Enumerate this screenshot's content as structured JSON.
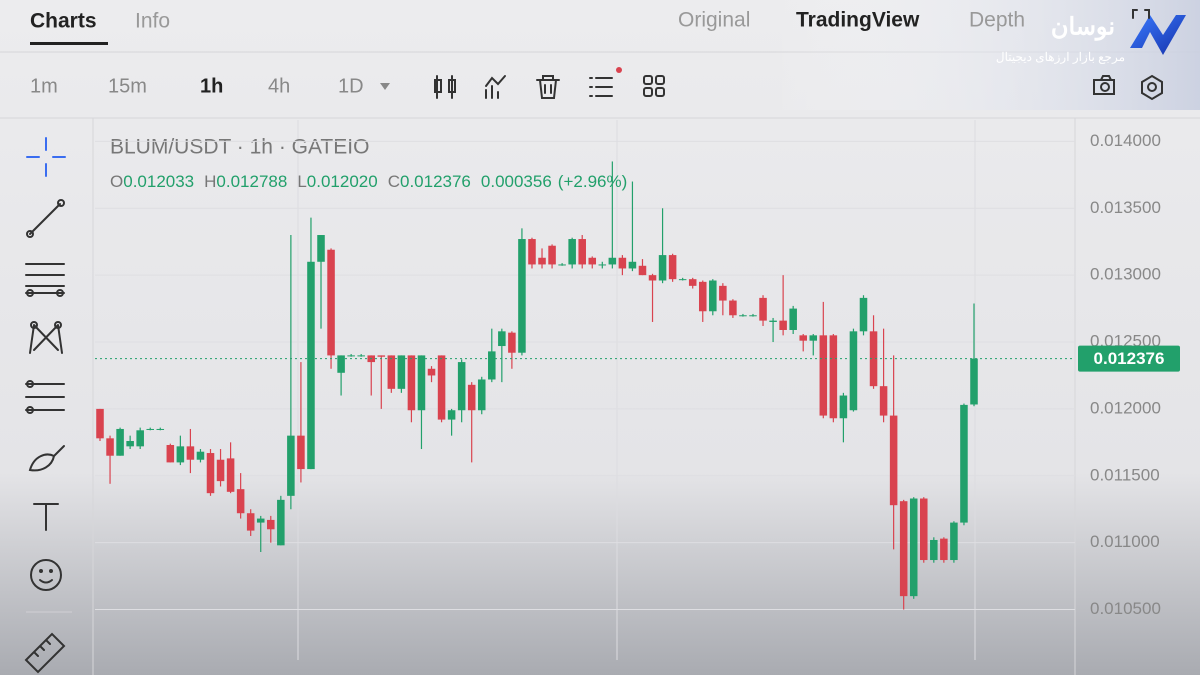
{
  "header": {
    "tabs": [
      "Charts",
      "Info"
    ],
    "views": [
      "Original",
      "TradingView",
      "Depth"
    ]
  },
  "logo": {
    "name": "نوسان",
    "tagline": "مرجع بازار ارزهای دیجیتال"
  },
  "toolbar": {
    "intervals": [
      "1m",
      "15m",
      "1h",
      "4h",
      "1D"
    ]
  },
  "chart_data": {
    "type": "candlestick",
    "title": "BLUM/USDT · 1h · GATEIO",
    "legend": [
      {
        "key": "O",
        "value": "0.012033"
      },
      {
        "key": "H",
        "value": "0.012788"
      },
      {
        "key": "L",
        "value": "0.012020"
      },
      {
        "key": "C",
        "value": "0.012376"
      }
    ],
    "change": "0.000356",
    "change_percent": "(+2.96%)",
    "up_color": "#22a06b",
    "down_color": "#d9434f",
    "ylim": [
      0.01016,
      0.01416
    ],
    "yticks": [
      {
        "value": 0.0105,
        "label": "0.010500"
      },
      {
        "value": 0.011,
        "label": "0.011000"
      },
      {
        "value": 0.0115,
        "label": "0.011500"
      },
      {
        "value": 0.012,
        "label": "0.012000"
      },
      {
        "value": 0.0125,
        "label": "0.012500"
      },
      {
        "value": 0.013,
        "label": "0.013000"
      },
      {
        "value": 0.0135,
        "label": "0.013500"
      },
      {
        "value": 0.014,
        "label": "0.014000"
      }
    ],
    "last_price": 0.012376,
    "ohlc": [
      [
        0.012,
        0.012,
        0.01176,
        0.01178
      ],
      [
        0.01178,
        0.0118,
        0.01144,
        0.01165
      ],
      [
        0.01165,
        0.01186,
        0.01165,
        0.01185
      ],
      [
        0.01172,
        0.0118,
        0.0117,
        0.01176
      ],
      [
        0.01172,
        0.01186,
        0.0117,
        0.01184
      ],
      [
        0.01185,
        0.01186,
        0.01184,
        0.01185
      ],
      [
        0.01185,
        0.01186,
        0.01184,
        0.01185
      ],
      [
        0.01173,
        0.01174,
        0.0116,
        0.0116
      ],
      [
        0.0116,
        0.0118,
        0.01158,
        0.01172
      ],
      [
        0.01172,
        0.01185,
        0.01152,
        0.01162
      ],
      [
        0.01162,
        0.0117,
        0.0116,
        0.01168
      ],
      [
        0.01167,
        0.0117,
        0.01135,
        0.01137
      ],
      [
        0.01162,
        0.0117,
        0.01142,
        0.01146
      ],
      [
        0.01163,
        0.01175,
        0.01137,
        0.01138
      ],
      [
        0.0114,
        0.01152,
        0.01118,
        0.01122
      ],
      [
        0.01122,
        0.01125,
        0.01105,
        0.01109
      ],
      [
        0.01115,
        0.0112,
        0.01093,
        0.01118
      ],
      [
        0.01117,
        0.0112,
        0.011,
        0.0111
      ],
      [
        0.01098,
        0.01135,
        0.01098,
        0.01132
      ],
      [
        0.01135,
        0.0133,
        0.01125,
        0.0118
      ],
      [
        0.0118,
        0.01235,
        0.01145,
        0.01155
      ],
      [
        0.01155,
        0.01343,
        0.01155,
        0.0131
      ],
      [
        0.0131,
        0.0133,
        0.0126,
        0.0133
      ],
      [
        0.01319,
        0.0132,
        0.0123,
        0.0124
      ],
      [
        0.01227,
        0.0124,
        0.0121,
        0.0124
      ],
      [
        0.0124,
        0.01241,
        0.01239,
        0.0124
      ],
      [
        0.0124,
        0.01241,
        0.01239,
        0.0124
      ],
      [
        0.0124,
        0.0124,
        0.0121,
        0.01235
      ],
      [
        0.0124,
        0.0124,
        0.012,
        0.01239
      ],
      [
        0.0124,
        0.0124,
        0.01212,
        0.01215
      ],
      [
        0.01215,
        0.0124,
        0.01212,
        0.0124
      ],
      [
        0.0124,
        0.0124,
        0.0119,
        0.01199
      ],
      [
        0.01199,
        0.0124,
        0.0117,
        0.0124
      ],
      [
        0.0123,
        0.01232,
        0.0122,
        0.01225
      ],
      [
        0.0124,
        0.0124,
        0.0119,
        0.01192
      ],
      [
        0.01192,
        0.012,
        0.0118,
        0.01199
      ],
      [
        0.01199,
        0.01237,
        0.0119,
        0.01235
      ],
      [
        0.01218,
        0.0122,
        0.0116,
        0.01199
      ],
      [
        0.01199,
        0.01224,
        0.01196,
        0.01222
      ],
      [
        0.01222,
        0.0126,
        0.0122,
        0.01243
      ],
      [
        0.01247,
        0.0126,
        0.0122,
        0.01258
      ],
      [
        0.01257,
        0.01258,
        0.0123,
        0.01242
      ],
      [
        0.01242,
        0.01335,
        0.0124,
        0.01327
      ],
      [
        0.01327,
        0.01328,
        0.01305,
        0.01308
      ],
      [
        0.01313,
        0.0132,
        0.01305,
        0.01308
      ],
      [
        0.01322,
        0.01323,
        0.01305,
        0.01308
      ],
      [
        0.01308,
        0.01309,
        0.01307,
        0.01308
      ],
      [
        0.01308,
        0.01328,
        0.01305,
        0.01327
      ],
      [
        0.01327,
        0.0133,
        0.01305,
        0.01308
      ],
      [
        0.01313,
        0.01314,
        0.01305,
        0.01308
      ],
      [
        0.01308,
        0.0131,
        0.01305,
        0.01308
      ],
      [
        0.01308,
        0.01385,
        0.01305,
        0.01313
      ],
      [
        0.01313,
        0.01315,
        0.013,
        0.01305
      ],
      [
        0.01305,
        0.0137,
        0.01303,
        0.0131
      ],
      [
        0.01307,
        0.01312,
        0.013,
        0.013
      ],
      [
        0.013,
        0.01301,
        0.01265,
        0.01296
      ],
      [
        0.01296,
        0.0135,
        0.01294,
        0.01315
      ],
      [
        0.01315,
        0.01316,
        0.01295,
        0.01297
      ],
      [
        0.01297,
        0.01298,
        0.01296,
        0.01297
      ],
      [
        0.01297,
        0.01298,
        0.0129,
        0.01292
      ],
      [
        0.01295,
        0.01296,
        0.01265,
        0.01273
      ],
      [
        0.01273,
        0.01297,
        0.0127,
        0.01296
      ],
      [
        0.01292,
        0.01294,
        0.0127,
        0.01281
      ],
      [
        0.01281,
        0.01282,
        0.01268,
        0.0127
      ],
      [
        0.0127,
        0.01271,
        0.01269,
        0.0127
      ],
      [
        0.0127,
        0.01271,
        0.01269,
        0.0127
      ],
      [
        0.01283,
        0.01285,
        0.01262,
        0.01266
      ],
      [
        0.01265,
        0.01268,
        0.0125,
        0.01266
      ],
      [
        0.01266,
        0.013,
        0.01255,
        0.01259
      ],
      [
        0.01259,
        0.01277,
        0.01256,
        0.01275
      ],
      [
        0.01255,
        0.01256,
        0.01243,
        0.01251
      ],
      [
        0.01251,
        0.01256,
        0.0124,
        0.01255
      ],
      [
        0.01255,
        0.0128,
        0.01193,
        0.01195
      ],
      [
        0.01255,
        0.01256,
        0.0119,
        0.01193
      ],
      [
        0.01193,
        0.01212,
        0.01175,
        0.0121
      ],
      [
        0.01199,
        0.0126,
        0.01198,
        0.01258
      ],
      [
        0.01258,
        0.01285,
        0.01255,
        0.01283
      ],
      [
        0.01258,
        0.0127,
        0.01215,
        0.01217
      ],
      [
        0.01217,
        0.0126,
        0.0119,
        0.01195
      ],
      [
        0.01195,
        0.0124,
        0.01095,
        0.01128
      ],
      [
        0.01131,
        0.01132,
        0.0105,
        0.0106
      ],
      [
        0.0106,
        0.01134,
        0.01058,
        0.01133
      ],
      [
        0.01133,
        0.01134,
        0.01085,
        0.01087
      ],
      [
        0.01087,
        0.01104,
        0.01085,
        0.01102
      ],
      [
        0.01103,
        0.01104,
        0.01085,
        0.01087
      ],
      [
        0.01087,
        0.01116,
        0.01085,
        0.01115
      ],
      [
        0.01115,
        0.01204,
        0.01113,
        0.01203
      ],
      [
        0.012033,
        0.012788,
        0.01202,
        0.012376
      ]
    ]
  }
}
